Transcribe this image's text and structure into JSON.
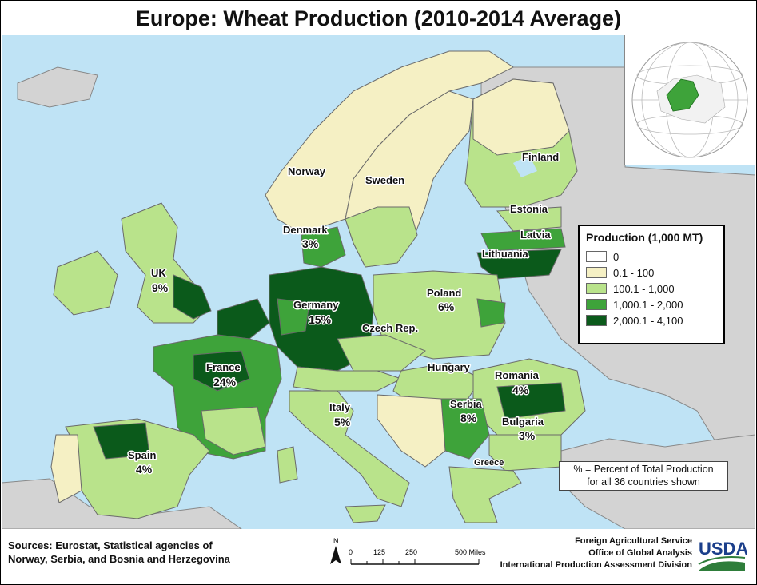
{
  "title": "Europe: Wheat Production (2010-2014 Average)",
  "legend": {
    "title": "Production (1,000 MT)",
    "items": [
      {
        "label": "0",
        "color": "#ffffff"
      },
      {
        "label": "0.1 - 100",
        "color": "#f5f0c4"
      },
      {
        "label": "100.1 - 1,000",
        "color": "#b9e38b"
      },
      {
        "label": "1,000.1 - 2,000",
        "color": "#3ea33a"
      },
      {
        "label": "2,000.1 - 4,100",
        "color": "#0b5a1b"
      }
    ]
  },
  "labels": [
    {
      "name": "Finland"
    },
    {
      "name": "Norway"
    },
    {
      "name": "Sweden"
    },
    {
      "name": "Estonia"
    },
    {
      "name": "Latvia"
    },
    {
      "name": "Lithuania"
    },
    {
      "name": "Denmark",
      "pct": "3%"
    },
    {
      "name": "UK",
      "pct": "9%"
    },
    {
      "name": "Germany",
      "pct": "15%"
    },
    {
      "name": "Poland",
      "pct": "6%"
    },
    {
      "name": "Czech Rep."
    },
    {
      "name": "Hungary"
    },
    {
      "name": "France",
      "pct": "24%"
    },
    {
      "name": "Romania",
      "pct": "4%"
    },
    {
      "name": "Italy",
      "pct": "5%"
    },
    {
      "name": "Serbia",
      "pct": "8%"
    },
    {
      "name": "Bulgaria",
      "pct": "3%"
    },
    {
      "name": "Spain",
      "pct": "4%"
    },
    {
      "name": "Greece"
    }
  ],
  "note": {
    "line1": "% = Percent of Total Production",
    "line2": "for all 36 countries shown"
  },
  "sources": {
    "line1": "Sources: Eurostat, Statistical agencies of",
    "line2": "Norway, Serbia, and Bosnia and Herzegovina"
  },
  "scale_bar": {
    "north": "N",
    "ticks": [
      "0",
      "125",
      "250",
      "500 Miles"
    ]
  },
  "agency": {
    "line1": "Foreign Agricultural Service",
    "line2": "Office of Global Analysis",
    "line3": "International Production Assessment Division"
  },
  "logo_text": "USDA",
  "colors": {
    "sea": "#bfe3f5",
    "non_europe": "#d3d3d3",
    "border": "#6a6a6a"
  }
}
